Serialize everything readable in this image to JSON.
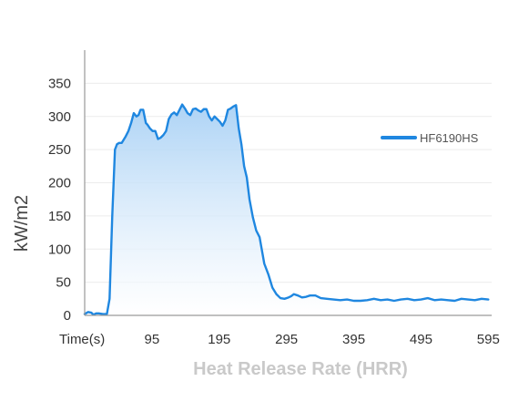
{
  "chart_data": {
    "type": "area",
    "title": "",
    "ylabel": "kW/m2",
    "xlabel": "Heat Release Rate (HRR)",
    "x_start_label": "Time(s)",
    "xlim": [
      -5,
      600
    ],
    "ylim": [
      0,
      400
    ],
    "x_ticks": [
      95,
      195,
      295,
      395,
      495,
      595
    ],
    "y_ticks": [
      0,
      50,
      100,
      150,
      200,
      250,
      300,
      350
    ],
    "grid": true,
    "legend": "right",
    "colors": {
      "line": "#1f87e0",
      "fill_top": "#a9d1f5",
      "fill_bottom": "#ffffff",
      "grid": "#ececec",
      "axis": "#9a9a9a"
    },
    "series": [
      {
        "name": "HF6190HS",
        "x": [
          -5,
          0,
          5,
          8,
          12,
          16,
          22,
          28,
          32,
          36,
          40,
          43,
          46,
          50,
          53,
          56,
          60,
          64,
          68,
          72,
          75,
          78,
          82,
          84,
          86,
          88,
          92,
          96,
          100,
          104,
          108,
          112,
          116,
          120,
          124,
          128,
          132,
          136,
          140,
          144,
          148,
          152,
          156,
          160,
          164,
          168,
          172,
          176,
          180,
          184,
          188,
          192,
          196,
          200,
          204,
          208,
          212,
          216,
          220,
          224,
          228,
          232,
          236,
          240,
          245,
          250,
          255,
          262,
          268,
          274,
          280,
          286,
          292,
          298,
          302,
          306,
          312,
          318,
          324,
          330,
          338,
          346,
          355,
          365,
          375,
          385,
          395,
          405,
          415,
          425,
          435,
          445,
          455,
          465,
          475,
          485,
          495,
          505,
          515,
          525,
          535,
          545,
          555,
          565,
          575,
          585,
          595
        ],
        "values": [
          2,
          5,
          4,
          1,
          3,
          3,
          2,
          2,
          25,
          150,
          250,
          258,
          260,
          260,
          265,
          270,
          278,
          290,
          305,
          300,
          302,
          310,
          310,
          300,
          290,
          288,
          282,
          278,
          278,
          266,
          268,
          272,
          278,
          296,
          303,
          306,
          302,
          310,
          318,
          312,
          305,
          302,
          311,
          312,
          309,
          307,
          311,
          311,
          300,
          294,
          300,
          296,
          292,
          286,
          294,
          310,
          312,
          315,
          317,
          282,
          258,
          225,
          208,
          175,
          148,
          128,
          118,
          78,
          62,
          42,
          32,
          26,
          25,
          27,
          29,
          32,
          30,
          27,
          28,
          30,
          30,
          26,
          25,
          24,
          23,
          24,
          22,
          22,
          23,
          25,
          23,
          24,
          22,
          24,
          25,
          23,
          24,
          26,
          23,
          24,
          23,
          22,
          25,
          24,
          23,
          25,
          24
        ]
      }
    ]
  }
}
